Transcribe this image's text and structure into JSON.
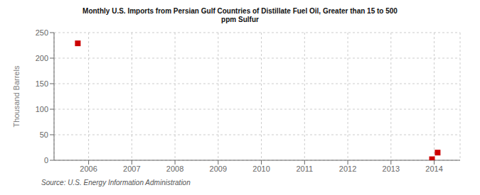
{
  "chart_data": {
    "type": "scatter",
    "title": "Monthly U.S. Imports from Persian Gulf Countries of Distillate Fuel Oil, Greater than 15 to 500\nppm Sulfur",
    "ylabel": "Thousand Barrels",
    "source": "Source: U.S. Energy Information Administration",
    "x": [
      2005.75,
      2013.95,
      2014.08
    ],
    "values": [
      229,
      2,
      15
    ],
    "color": "#cc0000",
    "marker": "square",
    "xlim": [
      2005.2,
      2014.6
    ],
    "ylim": [
      0,
      250
    ],
    "xticks": [
      2006,
      2007,
      2008,
      2009,
      2010,
      2011,
      2012,
      2013,
      2014
    ],
    "yticks": [
      0,
      50,
      100,
      150,
      200,
      250
    ],
    "grid": true
  }
}
